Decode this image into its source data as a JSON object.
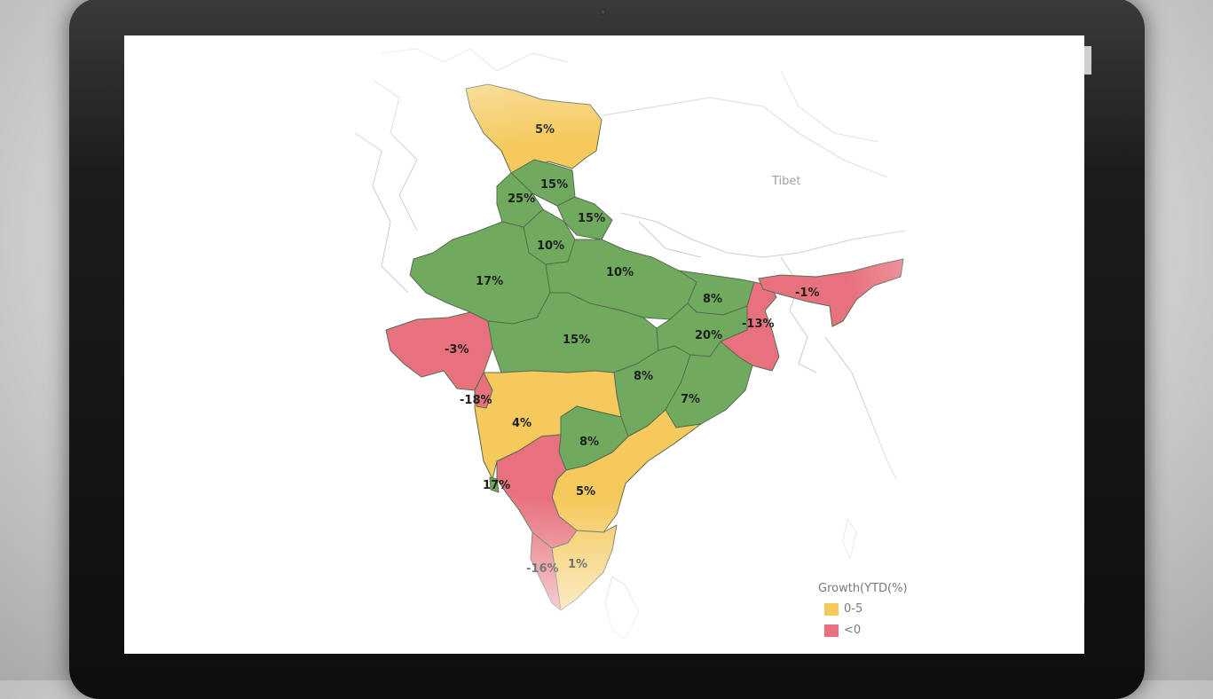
{
  "map": {
    "region_label": "Tibet",
    "colors": {
      "green": "#6faa5e",
      "yellow": "#f5c95c",
      "red": "#e7717d"
    },
    "values": {
      "jammu_kashmir": "5%",
      "himachal": "15%",
      "punjab": "25%",
      "uttarakhand": "15%",
      "haryana": "10%",
      "rajasthan": "17%",
      "uttar_pradesh": "10%",
      "bihar": "8%",
      "northeast": "-1%",
      "west_bengal": "-13%",
      "gujarat": "-3%",
      "madhya_pradesh": "15%",
      "jharkhand": "20%",
      "chhattisgarh": "8%",
      "odisha": "7%",
      "maharashtra_coast": "-18%",
      "maharashtra": "4%",
      "telangana": "8%",
      "goa": "17%",
      "andhra_pradesh": "5%",
      "kerala": "-16%",
      "tamil_nadu": "1%"
    }
  },
  "legend": {
    "title": "Growth(YTD(%)",
    "items": [
      {
        "label": "0-5",
        "color": "#f5c95c"
      },
      {
        "label": "<0",
        "color": "#e7717d"
      }
    ]
  }
}
